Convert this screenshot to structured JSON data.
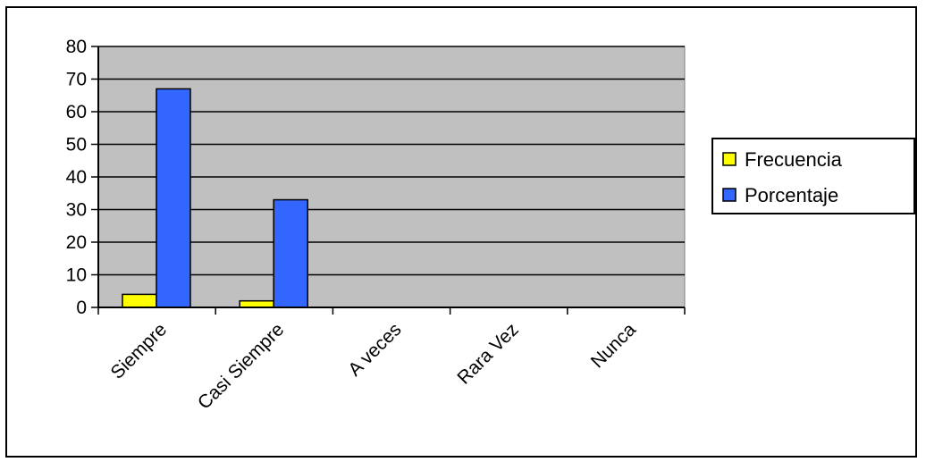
{
  "chart_data": {
    "type": "bar",
    "categories": [
      "Siempre",
      "Casi Siempre",
      "A veces",
      "Rara Vez",
      "Nunca"
    ],
    "series": [
      {
        "name": "Frecuencia",
        "values": [
          4,
          2,
          0,
          0,
          0
        ],
        "color": "#ffff00"
      },
      {
        "name": "Porcentaje",
        "values": [
          67,
          33,
          0,
          0,
          0
        ],
        "color": "#3366ff"
      }
    ],
    "ylim": [
      0,
      80
    ],
    "yticks": [
      0,
      10,
      20,
      30,
      40,
      50,
      60,
      70,
      80
    ],
    "grid": true,
    "legend_position": "right",
    "plot_background": "#c0c0c0",
    "title": "",
    "xlabel": "",
    "ylabel": ""
  }
}
